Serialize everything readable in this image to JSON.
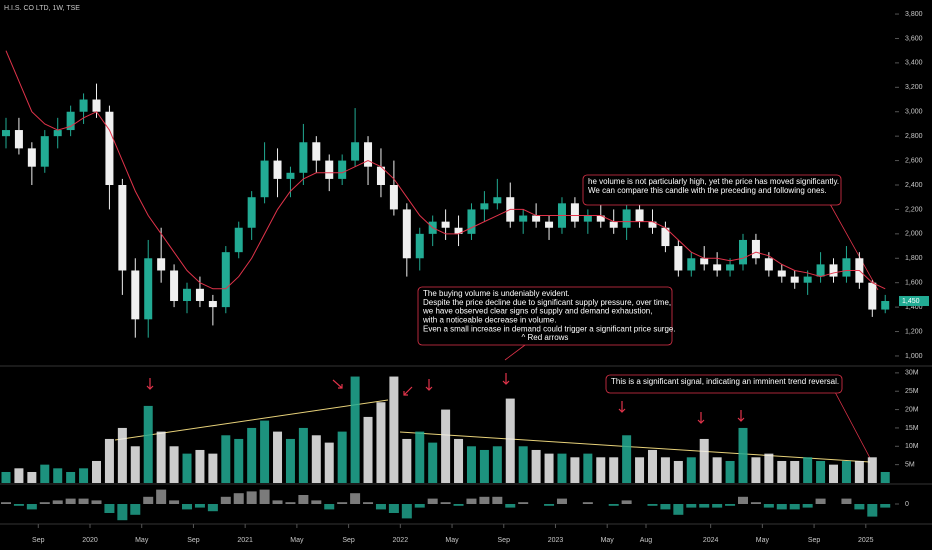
{
  "chart_data": {
    "type": "candlestick",
    "title": "H.I.S. CO LTD, 1W, TSE",
    "x": [
      "2019-06",
      "2019-07",
      "2019-08",
      "2019-09",
      "2019-10",
      "2019-11",
      "2019-12",
      "2020-01",
      "2020-02",
      "2020-03",
      "2020-04",
      "2020-05",
      "2020-06",
      "2020-07",
      "2020-08",
      "2020-09",
      "2020-10",
      "2020-11",
      "2020-12",
      "2021-01",
      "2021-02",
      "2021-03",
      "2021-04",
      "2021-05",
      "2021-06",
      "2021-07",
      "2021-08",
      "2021-09",
      "2021-10",
      "2021-11",
      "2021-12",
      "2022-01",
      "2022-02",
      "2022-03",
      "2022-04",
      "2022-05",
      "2022-06",
      "2022-07",
      "2022-08",
      "2022-09",
      "2022-10",
      "2022-11",
      "2022-12",
      "2023-01",
      "2023-02",
      "2023-03",
      "2023-04",
      "2023-05",
      "2023-06",
      "2023-07",
      "2023-08",
      "2023-09",
      "2023-10",
      "2023-11",
      "2023-12",
      "2024-01",
      "2024-02",
      "2024-03",
      "2024-04",
      "2024-05",
      "2024-06",
      "2024-07",
      "2024-08",
      "2024-09",
      "2024-10",
      "2024-11",
      "2024-12",
      "2025-01",
      "2025-02"
    ],
    "open": [
      2800,
      2850,
      2700,
      2550,
      2800,
      2850,
      3000,
      3100,
      3000,
      2400,
      1700,
      1300,
      1800,
      1700,
      1450,
      1550,
      1450,
      1400,
      1850,
      2050,
      2300,
      2600,
      2450,
      2500,
      2750,
      2600,
      2450,
      2600,
      2750,
      2550,
      2400,
      2200,
      1800,
      2000,
      2100,
      2050,
      2000,
      2200,
      2250,
      2300,
      2100,
      2150,
      2100,
      2050,
      2250,
      2100,
      2150,
      2100,
      2050,
      2200,
      2100,
      2050,
      1900,
      1700,
      1800,
      1750,
      1700,
      1750,
      1950,
      1800,
      1700,
      1650,
      1600,
      1650,
      1750,
      1650,
      1800,
      1600,
      1380
    ],
    "high": [
      2950,
      2950,
      2750,
      2850,
      2950,
      3050,
      3150,
      3230,
      3050,
      2450,
      1800,
      1950,
      2050,
      1750,
      1600,
      1650,
      1500,
      1900,
      2100,
      2350,
      2750,
      2700,
      2550,
      2900,
      2800,
      2650,
      2650,
      3030,
      2800,
      2700,
      2600,
      2250,
      2050,
      2150,
      2200,
      2150,
      2250,
      2350,
      2450,
      2420,
      2200,
      2250,
      2150,
      2300,
      2300,
      2200,
      2250,
      2200,
      2250,
      2250,
      2200,
      2100,
      1950,
      1850,
      1900,
      1850,
      1800,
      2000,
      2000,
      1850,
      1750,
      1700,
      1700,
      1850,
      1800,
      1900,
      1850,
      1620,
      1500
    ],
    "low": [
      2700,
      2650,
      2400,
      2500,
      2700,
      2800,
      2900,
      2950,
      2200,
      1500,
      1150,
      1150,
      1600,
      1400,
      1350,
      1400,
      1250,
      1350,
      1800,
      1950,
      2250,
      2300,
      2300,
      2400,
      2500,
      2350,
      2400,
      2550,
      2400,
      2300,
      2150,
      1650,
      1700,
      1900,
      1950,
      1900,
      1950,
      2100,
      2200,
      2050,
      2000,
      2050,
      1950,
      2000,
      2050,
      2000,
      2050,
      2000,
      1950,
      2050,
      2000,
      1850,
      1650,
      1650,
      1700,
      1650,
      1650,
      1700,
      1750,
      1650,
      1600,
      1550,
      1500,
      1600,
      1600,
      1600,
      1550,
      1320,
      1350
    ],
    "close": [
      2850,
      2700,
      2550,
      2800,
      2850,
      3000,
      3100,
      3000,
      2400,
      1700,
      1300,
      1800,
      1700,
      1450,
      1550,
      1450,
      1400,
      1850,
      2050,
      2300,
      2600,
      2450,
      2500,
      2750,
      2600,
      2450,
      2600,
      2750,
      2550,
      2400,
      2200,
      1800,
      2000,
      2100,
      2050,
      2000,
      2200,
      2250,
      2300,
      2100,
      2150,
      2100,
      2050,
      2250,
      2100,
      2150,
      2100,
      2050,
      2200,
      2100,
      2050,
      1900,
      1700,
      1800,
      1750,
      1700,
      1750,
      1950,
      1800,
      1700,
      1650,
      1600,
      1650,
      1750,
      1650,
      1800,
      1600,
      1380,
      1450
    ],
    "ma": [
      3500,
      3250,
      3000,
      2900,
      2850,
      2880,
      2950,
      3000,
      2850,
      2600,
      2350,
      2150,
      2000,
      1850,
      1700,
      1600,
      1550,
      1550,
      1650,
      1800,
      2000,
      2200,
      2350,
      2450,
      2500,
      2500,
      2500,
      2550,
      2600,
      2550,
      2450,
      2300,
      2150,
      2050,
      2000,
      2000,
      2050,
      2100,
      2150,
      2200,
      2200,
      2150,
      2150,
      2150,
      2150,
      2150,
      2150,
      2100,
      2100,
      2100,
      2100,
      2050,
      1950,
      1850,
      1800,
      1800,
      1780,
      1800,
      1850,
      1820,
      1750,
      1700,
      1680,
      1650,
      1680,
      1700,
      1700,
      1600,
      1550
    ],
    "volume": [
      3000000,
      4000000,
      3000000,
      5000000,
      4000000,
      3000000,
      4000000,
      6000000,
      12000000,
      15000000,
      10000000,
      21000000,
      14000000,
      10000000,
      8000000,
      9000000,
      8000000,
      13000000,
      12000000,
      15000000,
      17000000,
      14000000,
      12000000,
      15000000,
      13000000,
      11000000,
      14000000,
      29000000,
      18000000,
      22000000,
      29000000,
      12000000,
      14000000,
      11000000,
      20000000,
      12000000,
      10000000,
      9000000,
      10000000,
      23000000,
      10000000,
      9000000,
      8000000,
      8000000,
      7000000,
      8000000,
      7000000,
      7000000,
      13000000,
      7000000,
      9000000,
      7000000,
      6000000,
      7000000,
      12000000,
      7000000,
      6000000,
      15000000,
      7000000,
      8000000,
      6000000,
      6000000,
      7000000,
      6000000,
      5000000,
      6000000,
      6000000,
      7000000,
      3000000
    ],
    "oscillator": [
      0.1,
      -0.1,
      -0.3,
      0.1,
      0.2,
      0.3,
      0.3,
      0.2,
      -0.5,
      -0.9,
      -0.6,
      0.4,
      0.8,
      0.2,
      -0.3,
      -0.2,
      -0.4,
      0.4,
      0.6,
      0.7,
      0.8,
      0.2,
      0.1,
      0.5,
      0.2,
      -0.3,
      0.1,
      0.6,
      0.1,
      -0.3,
      -0.5,
      -0.8,
      -0.2,
      0.3,
      0.1,
      -0.1,
      0.3,
      0.4,
      0.4,
      -0.2,
      0.1,
      0,
      -0.1,
      0.3,
      0,
      0.1,
      0,
      -0.1,
      0.2,
      0,
      -0.1,
      -0.3,
      -0.6,
      -0.2,
      -0.2,
      -0.2,
      -0.1,
      0.4,
      0.1,
      -0.2,
      -0.3,
      -0.3,
      -0.2,
      0.3,
      0,
      0.3,
      -0.3,
      -0.7,
      -0.2
    ],
    "last_value_label": "1,450",
    "up_color": "#22ab94",
    "down_color": "#f0f0f0",
    "ma_color": "#e0334a",
    "ylim": [
      926,
      3915
    ],
    "yticks": [
      {
        "value": 1000,
        "label": "1,000"
      },
      {
        "value": 1200,
        "label": "1,200"
      },
      {
        "value": 1400,
        "label": "1,400"
      },
      {
        "value": 1600,
        "label": "1,600"
      },
      {
        "value": 1800,
        "label": "1,800"
      },
      {
        "value": 2000,
        "label": "2,000"
      },
      {
        "value": 2200,
        "label": "2,200"
      },
      {
        "value": 2400,
        "label": "2,400"
      },
      {
        "value": 2600,
        "label": "2,600"
      },
      {
        "value": 2800,
        "label": "2,800"
      },
      {
        "value": 3000,
        "label": "3,000"
      },
      {
        "value": 3200,
        "label": "3,200"
      },
      {
        "value": 3400,
        "label": "3,400"
      },
      {
        "value": 3600,
        "label": "3,600"
      },
      {
        "value": 3800,
        "label": "3,800"
      }
    ],
    "volume_lim": [
      0,
      31600000
    ],
    "volume_ticks": [
      {
        "value": 5000000,
        "label": "5M"
      },
      {
        "value": 10000000,
        "label": "10M"
      },
      {
        "value": 15000000,
        "label": "15M"
      },
      {
        "value": 20000000,
        "label": "20M"
      },
      {
        "value": 25000000,
        "label": "25M"
      },
      {
        "value": 30000000,
        "label": "30M"
      }
    ],
    "oscillator_lim": [
      -1,
      1
    ],
    "oscillator_ticks": [
      0
    ],
    "xticks": [
      {
        "value": "2019-09",
        "label": "Sep"
      },
      {
        "value": "2020-01",
        "label": "2020"
      },
      {
        "value": "2020-05",
        "label": "May"
      },
      {
        "value": "2020-09",
        "label": "Sep"
      },
      {
        "value": "2021-01",
        "label": "2021"
      },
      {
        "value": "2021-05",
        "label": "May"
      },
      {
        "value": "2021-09",
        "label": "Sep"
      },
      {
        "value": "2022-01",
        "label": "2022"
      },
      {
        "value": "2022-05",
        "label": "May"
      },
      {
        "value": "2022-09",
        "label": "Sep"
      },
      {
        "value": "2023-01",
        "label": "2023"
      },
      {
        "value": "2023-05",
        "label": "May"
      },
      {
        "value": "2023-08",
        "label": "Aug"
      },
      {
        "value": "2024-01",
        "label": "2024"
      },
      {
        "value": "2024-05",
        "label": "May"
      },
      {
        "value": "2024-09",
        "label": "Sep"
      },
      {
        "value": "2025-01",
        "label": "2025"
      }
    ],
    "annotations": [
      {
        "lines": [
          "he volume is not particularly high, yet the price has moved significantly.",
          "We can compare this candle with the preceding and following ones."
        ]
      },
      {
        "lines": [
          "The buying volume is undeniably evident.",
          "Despite the price decline due to significant supply pressure, over time,",
          "we have observed clear signs of supply and demand exhaustion,",
          "with a noticeable decrease in volume.",
          "Even a small increase in demand could trigger a significant price surge.",
          "^ Red arrows"
        ]
      },
      {
        "lines": [
          "This is a significant signal, indicating an imminent trend reversal."
        ]
      }
    ]
  }
}
